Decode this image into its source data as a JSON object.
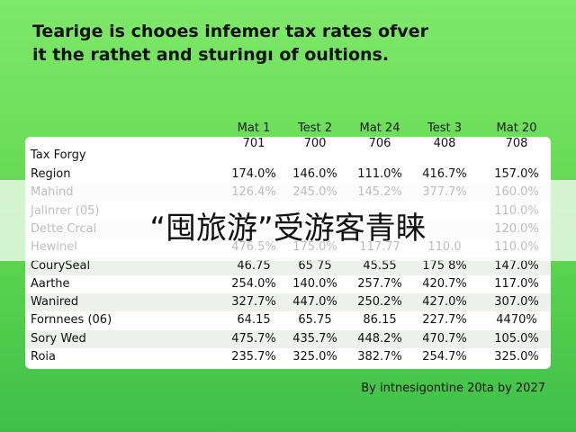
{
  "header": {
    "title": "Tearige is chooes infemer tax rates ofver it the rathet and sturingı of oultions."
  },
  "table": {
    "columns": [
      "Mat 1",
      "Test 2",
      "Mat 24",
      "Test 3",
      "Mat 20"
    ],
    "subheader": {
      "label": "Tax Forgy",
      "values": [
        "701",
        "700",
        "706",
        "408",
        "708"
      ]
    },
    "rows": [
      {
        "label": "Region",
        "values": [
          "174.0%",
          "146.0%",
          "111.0%",
          "416.7%",
          "157.0%"
        ]
      },
      {
        "label": "Mahind",
        "values": [
          "126.4%",
          "245.0%",
          "145.2%",
          "377.7%",
          "160.0%"
        ]
      },
      {
        "label": "Jalinrer (05)",
        "values": [
          null,
          null,
          null,
          null,
          "110.0%"
        ]
      },
      {
        "label": "Dette Crcal",
        "values": [
          null,
          null,
          null,
          null,
          "120.0%"
        ]
      },
      {
        "label": "Hewinel",
        "values": [
          "476.5%",
          "175.0%",
          "117.77",
          "110.0",
          "110.0%"
        ]
      },
      {
        "label": "CourySeal",
        "values": [
          "46.75",
          "65 75",
          "45.55",
          "175 8%",
          "147.0%"
        ]
      },
      {
        "label": "Aarthe",
        "values": [
          "254.0%",
          "140.0%",
          "257.7%",
          "420.7%",
          "117.0%"
        ]
      },
      {
        "label": "Wanired",
        "values": [
          "327.7%",
          "447.0%",
          "250.2%",
          "427.0%",
          "307.0%"
        ]
      },
      {
        "label": "Fornnees (06)",
        "values": [
          "64.15",
          "65.75",
          "86.15",
          "227.7%",
          "4470%"
        ]
      },
      {
        "label": "Sory Wed",
        "values": [
          "475.7%",
          "435.7%",
          "448.2%",
          "470.7%",
          "105.0%"
        ]
      },
      {
        "label": "Roia",
        "values": [
          "235.7%",
          "325.0%",
          "382.7%",
          "254.7%",
          "325.0%"
        ]
      }
    ]
  },
  "footer": {
    "note": "By intnesigontine 20ta by 2027"
  },
  "overlay": {
    "caption": "“囤旅游”受游客青睐"
  }
}
